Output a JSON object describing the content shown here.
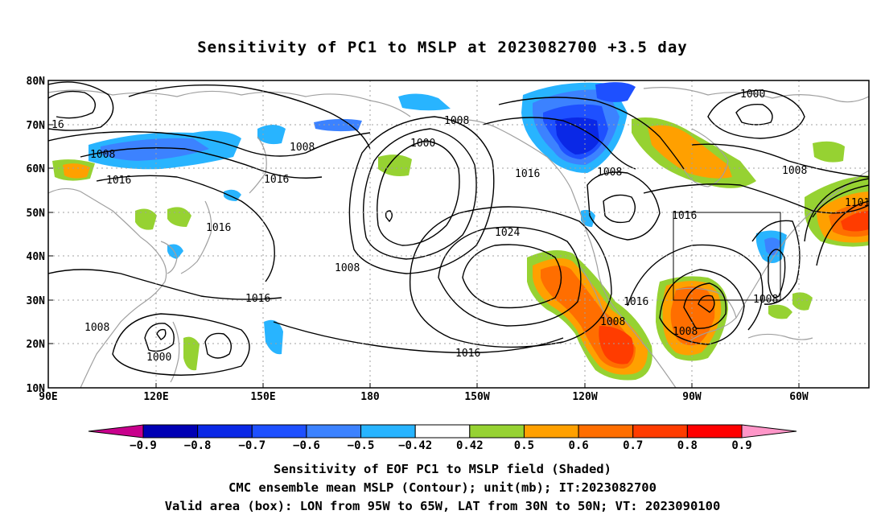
{
  "title": "Sensitivity of PC1 to MSLP at 2023082700 +3.5 day",
  "lat_labels": [
    "80N",
    "70N",
    "60N",
    "50N",
    "40N",
    "30N",
    "20N",
    "10N"
  ],
  "lon_labels": [
    "90E",
    "120E",
    "150E",
    "180",
    "150W",
    "120W",
    "90W",
    "60W"
  ],
  "contour_labels": [
    {
      "text": "16"
    },
    {
      "text": "1008"
    },
    {
      "text": "1016"
    },
    {
      "text": "1008"
    },
    {
      "text": "1016"
    },
    {
      "text": "1000"
    },
    {
      "text": "1008"
    },
    {
      "text": "1016"
    },
    {
      "text": "1008"
    },
    {
      "text": "1000"
    },
    {
      "text": "1008"
    },
    {
      "text": "1016"
    },
    {
      "text": "1101"
    },
    {
      "text": "1024"
    },
    {
      "text": "1008"
    },
    {
      "text": "1016"
    },
    {
      "text": "1008"
    },
    {
      "text": "1016"
    },
    {
      "text": "1016"
    },
    {
      "text": "1000"
    },
    {
      "text": "1008"
    },
    {
      "text": "1008"
    },
    {
      "text": "1008"
    }
  ],
  "colorbar": {
    "labels": [
      "−0.9",
      "−0.8",
      "−0.7",
      "−0.6",
      "−0.5",
      "−0.42",
      "0.42",
      "0.5",
      "0.6",
      "0.7",
      "0.8",
      "0.9"
    ],
    "colors": [
      "#0000b4",
      "#0a28e6",
      "#1e50ff",
      "#3c82ff",
      "#28b4ff",
      "#ffffff",
      "#96d232",
      "#ffa000",
      "#ff6e00",
      "#ff3c00",
      "#ff0000"
    ],
    "low_color": "#c8008c",
    "high_color": "#ff96c8"
  },
  "footer": {
    "line1": "Sensitivity of EOF PC1 to MSLP field (Shaded)",
    "line2": "CMC ensemble mean MSLP (Contour); unit(mb); IT:2023082700",
    "line3": "Valid area (box): LON from 95W to 65W, LAT from 30N to 50N; VT: 2023090100"
  },
  "colors": {
    "coast": "#a0a0a0",
    "contour": "#000000",
    "green": "#96d232",
    "orange": "#ffa000",
    "dorange": "#ff6e00",
    "red": "#ff3c00",
    "lblue": "#28b4ff",
    "mblue": "#3c82ff",
    "blue": "#1e50ff",
    "dblue": "#0a28e6"
  }
}
